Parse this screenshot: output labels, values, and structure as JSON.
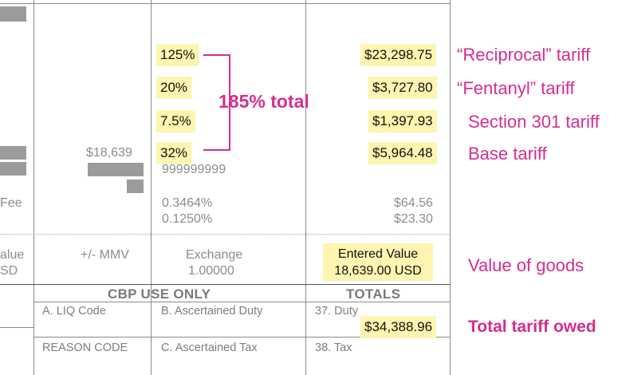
{
  "form": {
    "left_fee_fragment": "Fee",
    "left_value_fragment": "alue",
    "left_usd_fragment": "SD",
    "value_amount": "$18,639",
    "mmv_label": "+/- MMV",
    "rates": [
      "125%",
      "20%",
      "7.5%",
      "32%"
    ],
    "hts_number": "999999999",
    "fee_rates": [
      "0.3464%",
      "0.1250%"
    ],
    "exchange_label": "Exchange",
    "exchange_rate": "1.00000",
    "duties": [
      "$23,298.75",
      "$3,727.80",
      "$1,397.93",
      "$5,964.48"
    ],
    "fees": [
      "$64.56",
      "$23.30"
    ],
    "entered_value_label": "Entered Value",
    "entered_value_amount": "18,639.00 USD",
    "cbp_header": "CBP USE ONLY",
    "totals_header": "TOTALS",
    "liq_code_label": "A. LIQ Code",
    "ascertained_duty_label": "B. Ascertained Duty",
    "duty_label": "37. Duty",
    "total_duty": "$34,388.96",
    "reason_code_label": "REASON CODE",
    "ascertained_tax_label": "C. Ascertained Tax",
    "tax_label": "38. Tax"
  },
  "annotations": {
    "total_rate": "185% total",
    "tariff_labels": [
      "“Reciprocal” tariff",
      "“Fentanyl” tariff",
      "Section 301 tariff",
      "Base tariff"
    ],
    "value_of_goods": "Value of goods",
    "total_owed": "Total tariff owed"
  },
  "colors": {
    "highlight": "#fdf5b0",
    "annotation": "#d42e8f",
    "form_text": "#8c8c8c",
    "redaction": "#9b9b9b"
  }
}
